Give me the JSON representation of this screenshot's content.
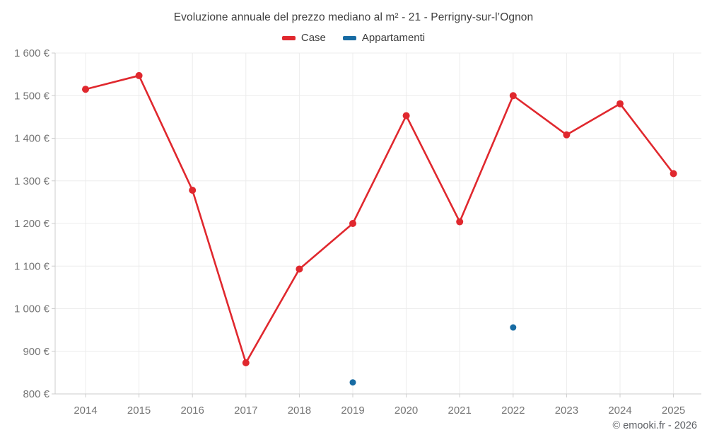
{
  "header": {
    "title": "Evoluzione annuale del prezzo mediano al m² - 21 - Perrigny-sur-l’Ognon"
  },
  "legend": {
    "items": [
      {
        "label": "Case",
        "color": "#e0282e"
      },
      {
        "label": "Appartamenti",
        "color": "#176ba3"
      }
    ]
  },
  "footer": {
    "credit": "© emooki.fr - 2026"
  },
  "chart_data": {
    "type": "line",
    "title": "Evoluzione annuale del prezzo mediano al m² - 21 - Perrigny-sur-l’Ognon",
    "xlabel": "",
    "ylabel": "",
    "currency": "€",
    "categories": [
      "2014",
      "2015",
      "2016",
      "2017",
      "2018",
      "2019",
      "2020",
      "2021",
      "2022",
      "2023",
      "2024",
      "2025"
    ],
    "series": [
      {
        "name": "Case",
        "color": "#e0282e",
        "line": true,
        "marker_radius": 5,
        "values": [
          1515,
          1547,
          1278,
          873,
          1093,
          1200,
          1453,
          1204,
          1500,
          1408,
          1481,
          1317
        ]
      },
      {
        "name": "Appartamenti",
        "color": "#176ba3",
        "line": false,
        "marker_radius": 4.5,
        "values": [
          null,
          null,
          null,
          null,
          null,
          827,
          null,
          null,
          956,
          null,
          null,
          null
        ]
      }
    ],
    "ylim": [
      800,
      1600
    ],
    "ytick_step": 100,
    "ytick_labels": [
      "800 €",
      "900 €",
      "1 000 €",
      "1 100 €",
      "1 200 €",
      "1 300 €",
      "1 400 €",
      "1 500 €",
      "1 600 €"
    ],
    "grid": true,
    "legend_position": "top"
  },
  "style": {
    "background": "#ffffff",
    "grid_color": "#ececec",
    "axis_color": "#cccccc",
    "tick_label_color": "#757575",
    "title_color": "#3f3f3f",
    "footer_color": "#5b5e63"
  }
}
